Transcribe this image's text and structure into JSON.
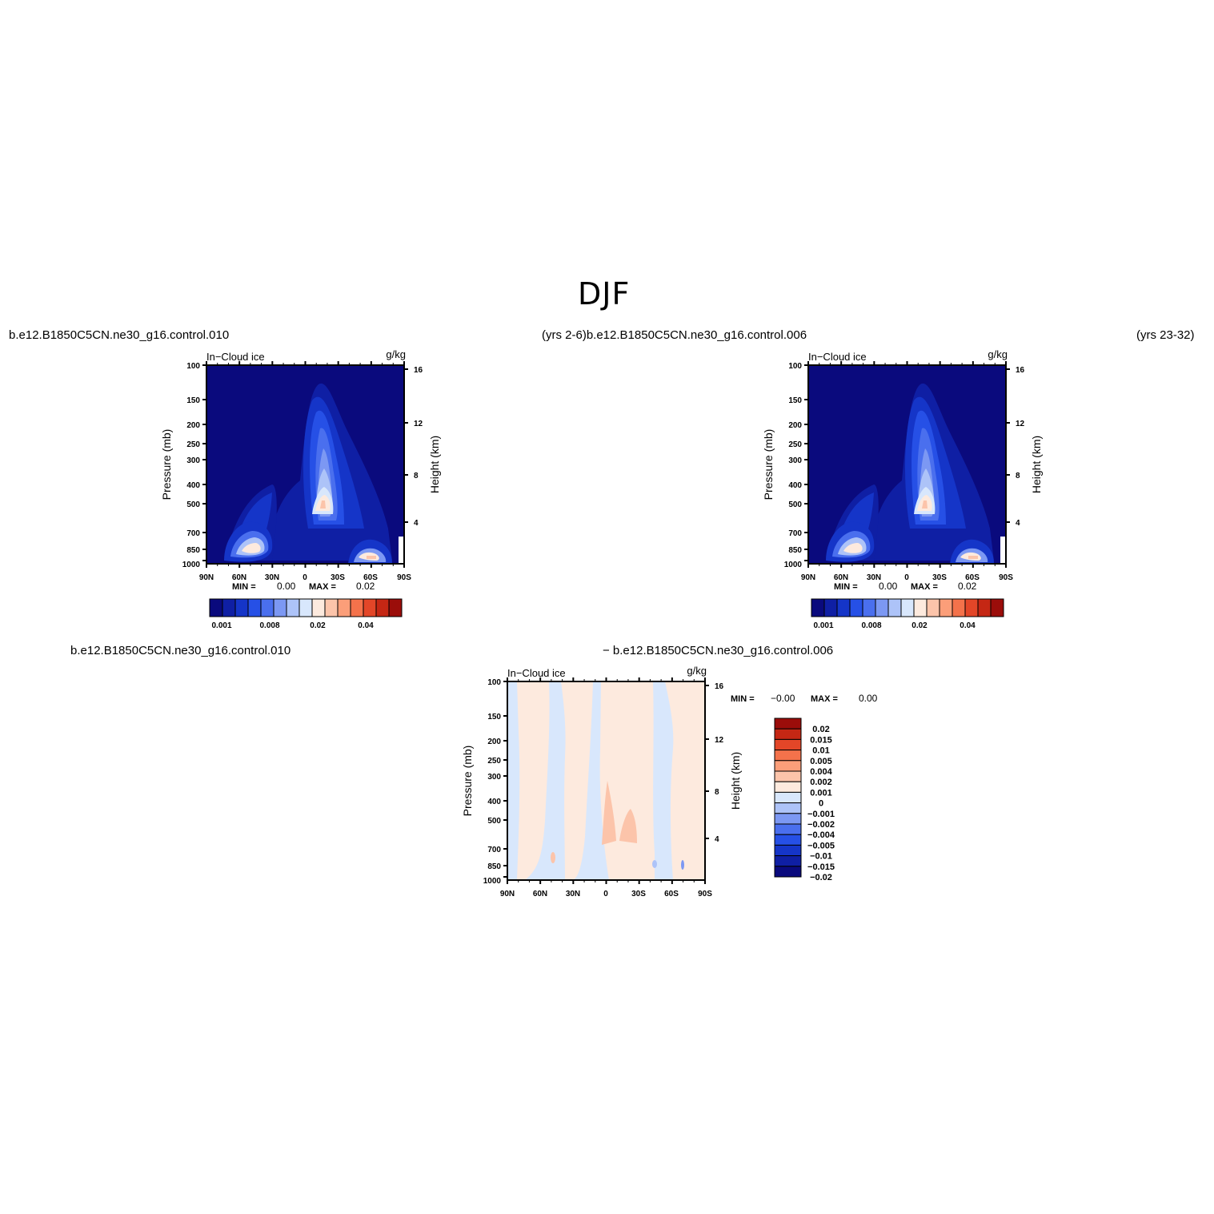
{
  "page": {
    "main_title": "DJF",
    "top_left_header": "b.e12.B1850C5CN.ne30_g16.control.010",
    "top_mid_header": "(yrs 2-6)b.e12.B1850C5CN.ne30_g16.control.006",
    "top_right_header": "(yrs 23-32)",
    "bottom_left_header": "b.e12.B1850C5CN.ne30_g16.control.010",
    "bottom_mid_header": "− b.e12.B1850C5CN.ne30_g16.control.006"
  },
  "colors": {
    "seq_palette": [
      "#0a0a7d",
      "#0f1fa4",
      "#1535c8",
      "#2650e6",
      "#4a6fee",
      "#7c98f3",
      "#adc3f8",
      "#d8e7fc",
      "#fdeade",
      "#fcc4aa",
      "#fb9e79",
      "#f4724b",
      "#e34628",
      "#c52714",
      "#9b0d0a"
    ],
    "diff_palette": [
      "#0a0a7d",
      "#0f1fa4",
      "#1535c8",
      "#2650e6",
      "#4a6fee",
      "#7c98f3",
      "#adc3f8",
      "#d8e7fc",
      "#fdeade",
      "#fcc4aa",
      "#fb9e79",
      "#f4724b",
      "#e34628",
      "#c52714",
      "#9b0d0a"
    ]
  },
  "chart_data": [
    {
      "type": "heatmap",
      "id": "panel_a",
      "corner_label_left": "In−Cloud ice",
      "corner_label_right": "g/kg",
      "ylabel": "Pressure (mb)",
      "ylabel_right": "Height (km)",
      "x_ticks": [
        "90N",
        "60N",
        "30N",
        "0",
        "30S",
        "60S",
        "90S"
      ],
      "y_ticks": [
        "100",
        "150",
        "200",
        "250",
        "300",
        "400",
        "500",
        "700",
        "850",
        "1000"
      ],
      "y_right_ticks": [
        "16",
        "12",
        "8",
        "4"
      ],
      "stats": {
        "min_label": "MIN =",
        "min_value": "0.00",
        "max_label": "MAX =",
        "max_value": "0.02"
      },
      "colorbar_labels": [
        "0.001",
        "0.008",
        "0.02",
        "0.04"
      ]
    },
    {
      "type": "heatmap",
      "id": "panel_b",
      "corner_label_left": "In−Cloud ice",
      "corner_label_right": "g/kg",
      "ylabel": "Pressure (mb)",
      "ylabel_right": "Height (km)",
      "x_ticks": [
        "90N",
        "60N",
        "30N",
        "0",
        "30S",
        "60S",
        "90S"
      ],
      "y_ticks": [
        "100",
        "150",
        "200",
        "250",
        "300",
        "400",
        "500",
        "700",
        "850",
        "1000"
      ],
      "y_right_ticks": [
        "16",
        "12",
        "8",
        "4"
      ],
      "stats": {
        "min_label": "MIN =",
        "min_value": "0.00",
        "max_label": "MAX =",
        "max_value": "0.02"
      },
      "colorbar_labels": [
        "0.001",
        "0.008",
        "0.02",
        "0.04"
      ]
    },
    {
      "type": "heatmap",
      "id": "panel_diff",
      "corner_label_left": "In−Cloud ice",
      "corner_label_right": "g/kg",
      "ylabel": "Pressure (mb)",
      "ylabel_right": "Height (km)",
      "x_ticks": [
        "90N",
        "60N",
        "30N",
        "0",
        "30S",
        "60S",
        "90S"
      ],
      "y_ticks": [
        "100",
        "150",
        "200",
        "250",
        "300",
        "400",
        "500",
        "700",
        "850",
        "1000"
      ],
      "y_right_ticks": [
        "16",
        "12",
        "8",
        "4"
      ],
      "stats": {
        "min_label": "MIN =",
        "min_value": "−0.00",
        "max_label": "MAX =",
        "max_value": "0.00"
      },
      "colorbar_labels": [
        "0.02",
        "0.015",
        "0.01",
        "0.005",
        "0.004",
        "0.002",
        "0.001",
        "0",
        "−0.001",
        "−0.002",
        "−0.004",
        "−0.005",
        "−0.01",
        "−0.015",
        "−0.02"
      ]
    }
  ]
}
